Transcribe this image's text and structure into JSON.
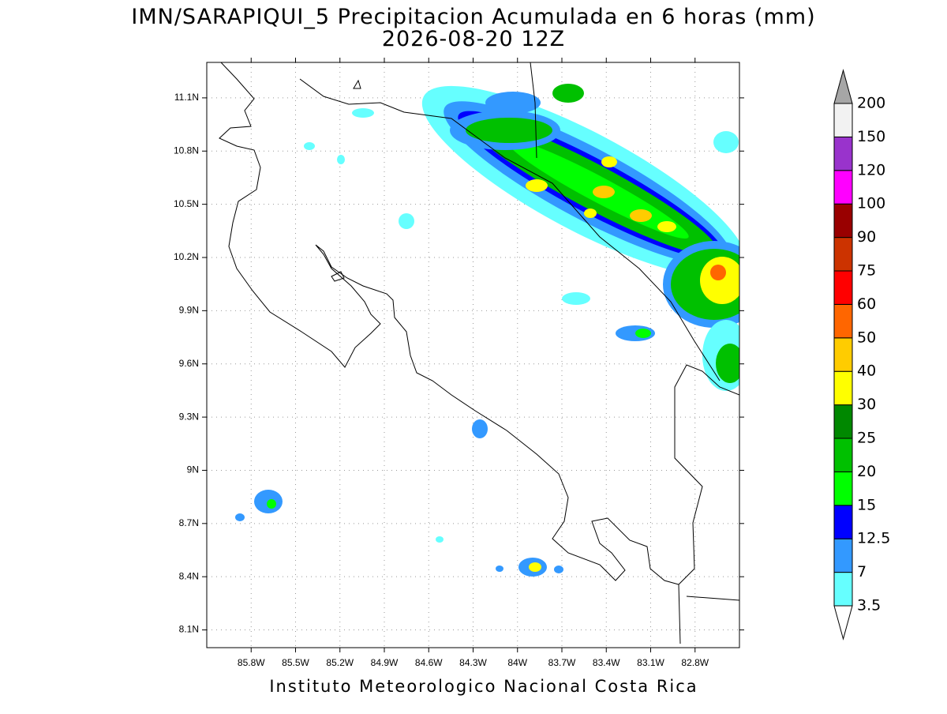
{
  "title": "IMN/SARAPIQUI_5 Precipitacion Acumulada en 6 horas (mm)",
  "subtitle": "2026-08-20 12Z",
  "footer": "Instituto Meteorologico Nacional Costa Rica",
  "map": {
    "xlim": [
      -86.1,
      -82.5
    ],
    "ylim": [
      8.0,
      11.3
    ],
    "grid": true,
    "xticks": [
      {
        "value": -85.8,
        "label": "85.8W"
      },
      {
        "value": -85.5,
        "label": "85.5W"
      },
      {
        "value": -85.2,
        "label": "85.2W"
      },
      {
        "value": -84.9,
        "label": "84.9W"
      },
      {
        "value": -84.6,
        "label": "84.6W"
      },
      {
        "value": -84.3,
        "label": "84.3W"
      },
      {
        "value": -84,
        "label": "84W"
      },
      {
        "value": -83.7,
        "label": "83.7W"
      },
      {
        "value": -83.4,
        "label": "83.4W"
      },
      {
        "value": -83.1,
        "label": "83.1W"
      },
      {
        "value": -82.8,
        "label": "82.8W"
      }
    ],
    "yticks": [
      {
        "value": 8.1,
        "label": "8.1N"
      },
      {
        "value": 8.4,
        "label": "8.4N"
      },
      {
        "value": 8.7,
        "label": "8.7N"
      },
      {
        "value": 9,
        "label": "9N"
      },
      {
        "value": 9.3,
        "label": "9.3N"
      },
      {
        "value": 9.6,
        "label": "9.6N"
      },
      {
        "value": 9.9,
        "label": "9.9N"
      },
      {
        "value": 10.2,
        "label": "10.2N"
      },
      {
        "value": 10.5,
        "label": "10.5N"
      },
      {
        "value": 10.8,
        "label": "10.8N"
      },
      {
        "value": 11.1,
        "label": "11.1N"
      }
    ]
  },
  "colorbar": {
    "levels": [
      3.5,
      7,
      12.5,
      15,
      20,
      25,
      30,
      40,
      50,
      60,
      75,
      90,
      100,
      120,
      150,
      200
    ],
    "colors": [
      "#66ffff",
      "#3399ff",
      "#0000ff",
      "#00ff00",
      "#00c000",
      "#008800",
      "#ffff00",
      "#ffcc00",
      "#ff6600",
      "#ff0000",
      "#cc3300",
      "#990000",
      "#ff00ff",
      "#9933cc",
      "#f2f2f2"
    ],
    "under_color": "#ffffff",
    "over_color": "#a6a6a6"
  }
}
